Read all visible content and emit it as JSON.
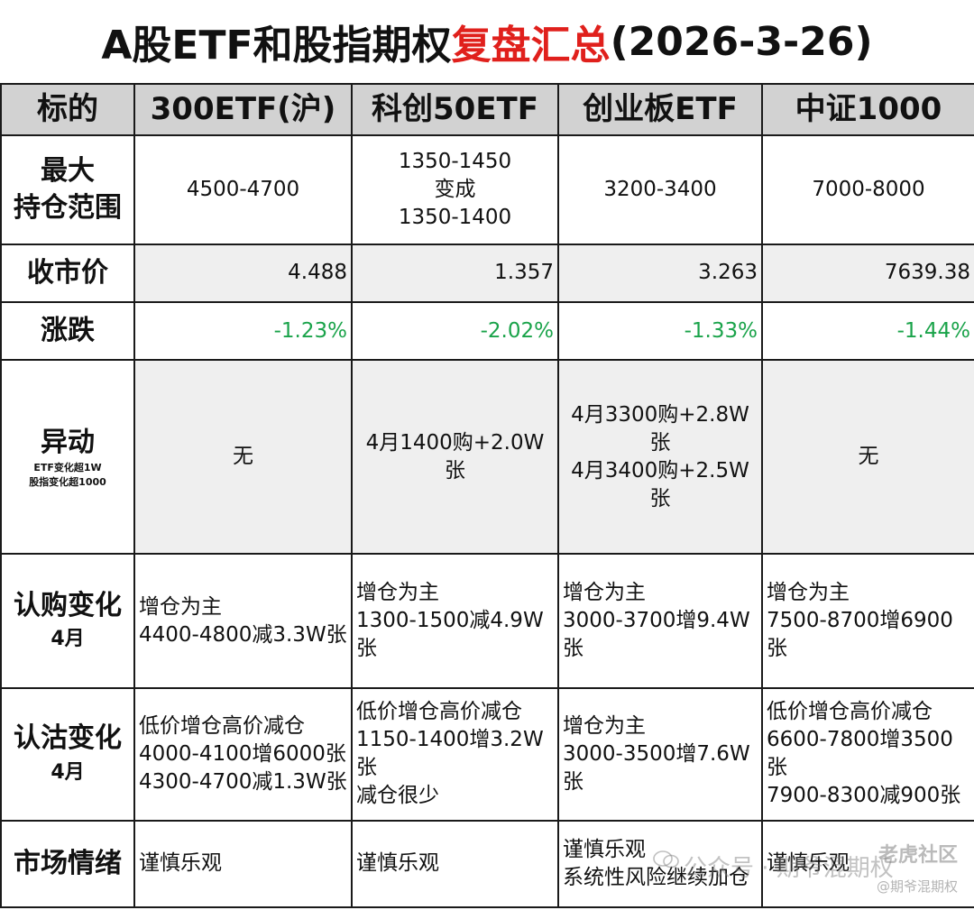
{
  "title": {
    "prefix": "A股ETF和股指期权",
    "highlight": "复盘汇总",
    "suffix": "(2026-3-26)"
  },
  "headers": {
    "label": "标的",
    "cols": [
      "300ETF(沪)",
      "科创50ETF",
      "创业板ETF",
      "中证1000"
    ]
  },
  "rows": {
    "range": {
      "label_line1": "最大",
      "label_line2": "持仓范围",
      "values": [
        [
          "4500-4700"
        ],
        [
          "1350-1450",
          "变成",
          "1350-1400"
        ],
        [
          "3200-3400"
        ],
        [
          "7000-8000"
        ]
      ]
    },
    "close": {
      "label": "收市价",
      "values": [
        "4.488",
        "1.357",
        "3.263",
        "7639.38"
      ]
    },
    "change": {
      "label": "涨跌",
      "values": [
        "-1.23%",
        "-2.02%",
        "-1.33%",
        "-1.44%"
      ]
    },
    "movement": {
      "label": "异动",
      "note_line1": "ETF变化超1W",
      "note_line2": "股指变化超1000",
      "values": [
        [
          "无"
        ],
        [
          "4月1400购+2.0W张"
        ],
        [
          "4月3300购+2.8W张",
          "4月3400购+2.5W张"
        ],
        [
          "无"
        ]
      ]
    },
    "call": {
      "label": "认购变化",
      "sub": "4月",
      "values": [
        [
          "增仓为主",
          "4400-4800减3.3W张"
        ],
        [
          "增仓为主",
          "1300-1500减4.9W张"
        ],
        [
          "增仓为主",
          "3000-3700增9.4W张"
        ],
        [
          "增仓为主",
          "7500-8700增6900张"
        ]
      ]
    },
    "put": {
      "label": "认沽变化",
      "sub": "4月",
      "values": [
        [
          "低价增仓高价减仓",
          "4000-4100增6000张",
          "4300-4700减1.3W张"
        ],
        [
          "低价增仓高价减仓",
          "1150-1400增3.2W张",
          "减仓很少"
        ],
        [
          "增仓为主",
          "3000-3500增7.6W张"
        ],
        [
          "低价增仓高价减仓",
          "6600-7800增3500张",
          "7900-8300减900张"
        ]
      ]
    },
    "sentiment": {
      "label": "市场情绪",
      "values": [
        [
          "谨慎乐观"
        ],
        [
          "谨慎乐观"
        ],
        [
          "谨慎乐观",
          "系统性风险继续加仓"
        ],
        [
          "谨慎乐观"
        ]
      ]
    }
  },
  "watermark": {
    "text": "公众号 · 期爷混期权",
    "logo": "老虎社区",
    "handle": "@期爷混期权",
    "icon": "wechat-icon"
  },
  "colors": {
    "title_highlight": "#e0201c",
    "negative_change": "#1aa34a",
    "header_bg": "#d2d2d2",
    "gray_row_bg": "#efefef"
  }
}
